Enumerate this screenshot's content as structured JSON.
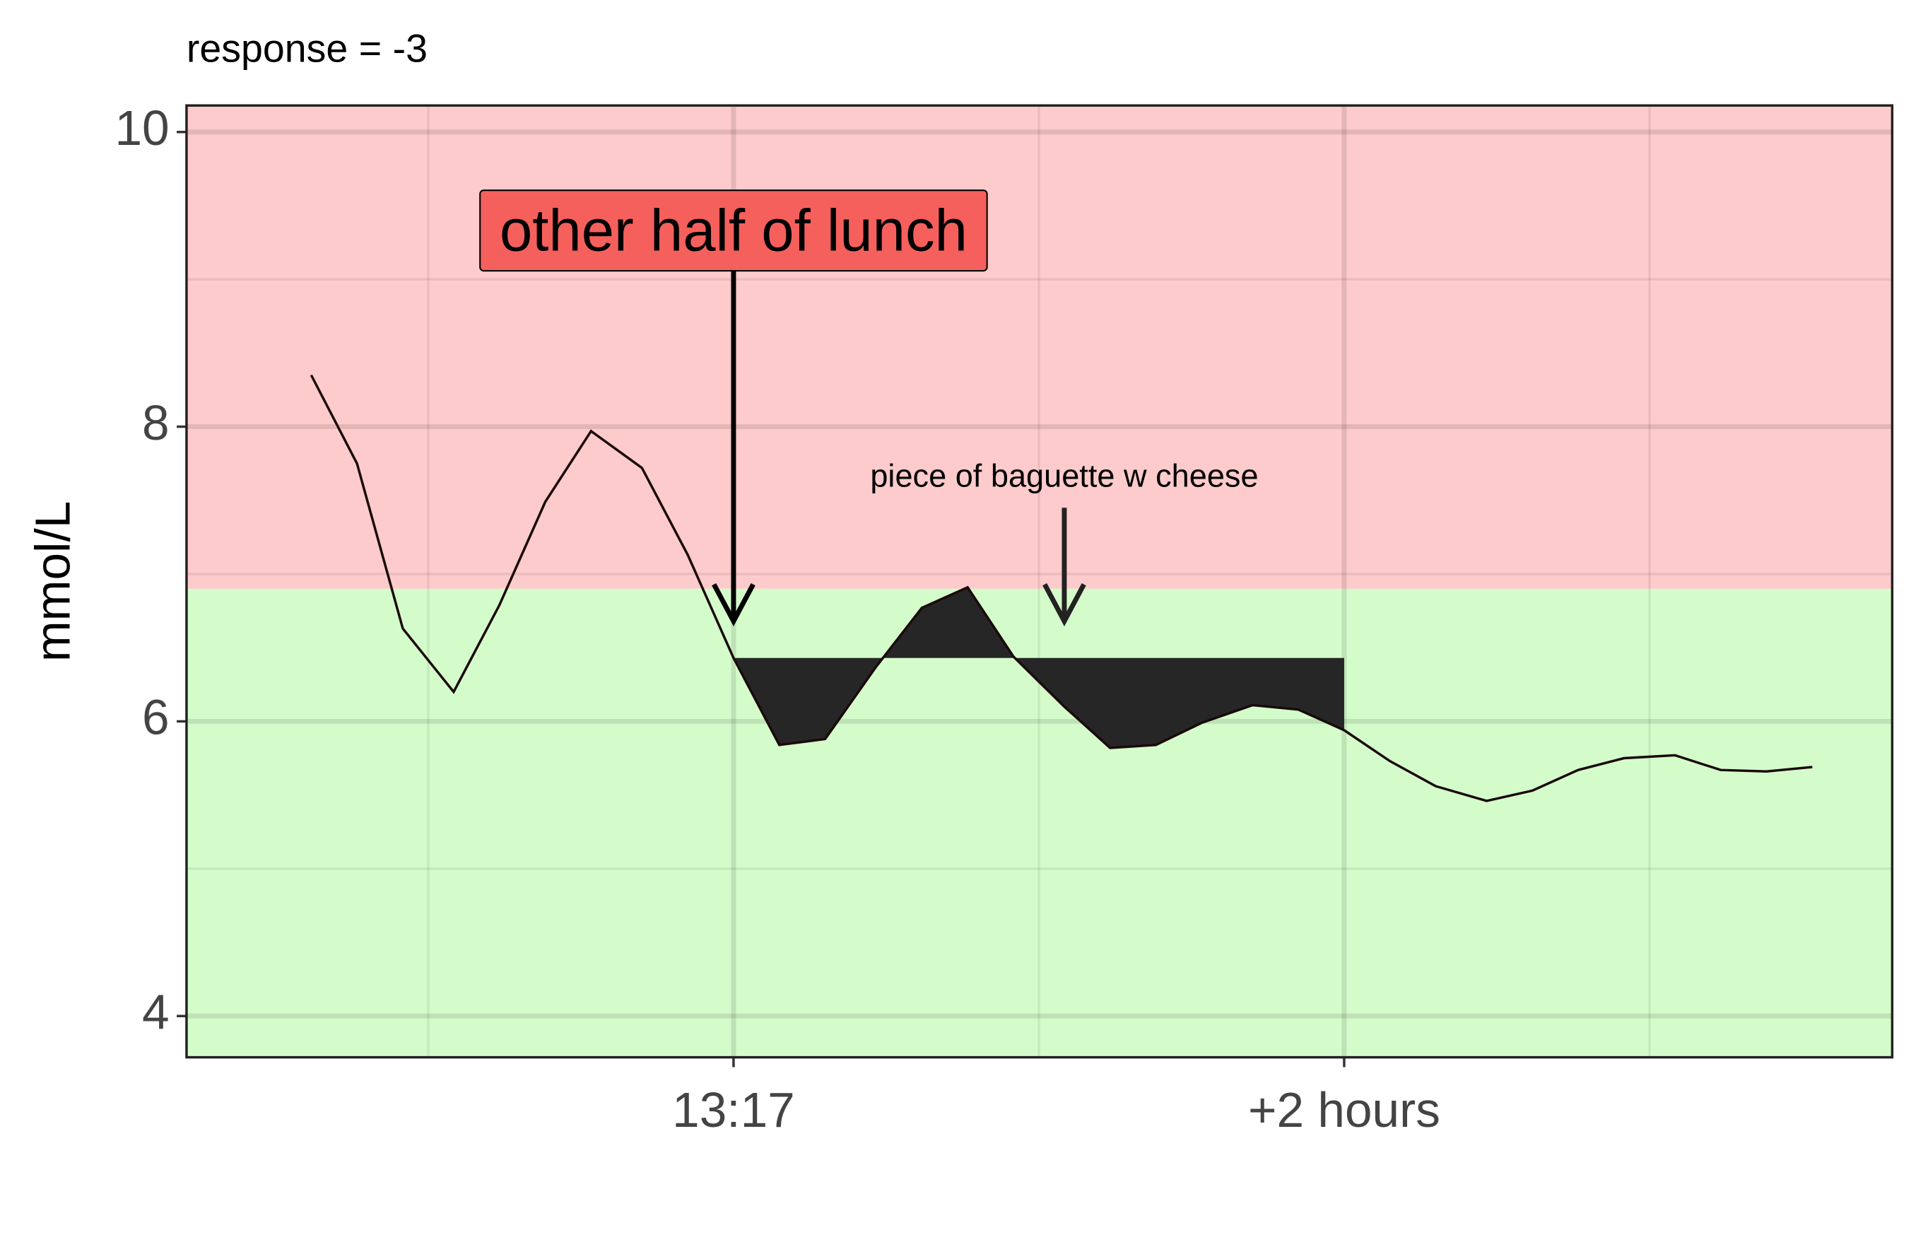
{
  "chart_data": {
    "type": "line",
    "title": "response = -3",
    "y_label": "mmol/L",
    "x": [
      -83,
      -74,
      -65,
      -55,
      -46,
      -37,
      -28,
      -18,
      -9,
      0,
      9,
      18,
      28,
      37,
      46,
      55,
      65,
      74,
      83,
      92,
      102,
      111,
      120,
      129,
      138,
      148,
      157,
      166,
      175,
      185,
      194,
      203,
      212
    ],
    "series": [
      {
        "color": "#1a0a0a",
        "values": [
          8.35,
          7.75,
          6.63,
          6.2,
          6.79,
          7.49,
          7.97,
          7.72,
          7.13,
          6.43,
          5.84,
          5.88,
          6.37,
          6.77,
          6.91,
          6.44,
          6.1,
          5.82,
          5.84,
          5.99,
          6.11,
          6.08,
          5.94,
          5.73,
          5.56,
          5.46,
          5.53,
          5.67,
          5.75,
          5.77,
          5.67,
          5.66,
          5.69
        ]
      }
    ],
    "xlim": [
      -107.5,
      227.7
    ],
    "ylim": [
      3.72,
      10.18
    ],
    "xticks": [
      {
        "value": 0,
        "label": "13:17"
      },
      {
        "value": 120,
        "label": "+2 hours"
      }
    ],
    "yticks": [
      4,
      6,
      8,
      10
    ],
    "minor_xticks": [
      -60,
      60,
      180
    ],
    "minor_yticks": [
      5,
      7,
      9
    ],
    "grid": true,
    "threshold": 6.9,
    "band_colors": {
      "above": "#fdcbcb",
      "below": "#d4fccb"
    },
    "response_fill": {
      "baseline": 6.43,
      "x_range": [
        0,
        120
      ],
      "color": "#262626"
    },
    "annotations": [
      {
        "text": "other half of lunch",
        "x": 0,
        "y": 9.3,
        "arrow_from": 9.05,
        "arrow_to": 6.68,
        "boxed": true,
        "box_color": "#f5605c"
      },
      {
        "text": "piece of baguette w cheese",
        "x": 65,
        "y": 7.65,
        "arrow_from": 7.45,
        "arrow_to": 6.68,
        "boxed": false
      }
    ]
  }
}
